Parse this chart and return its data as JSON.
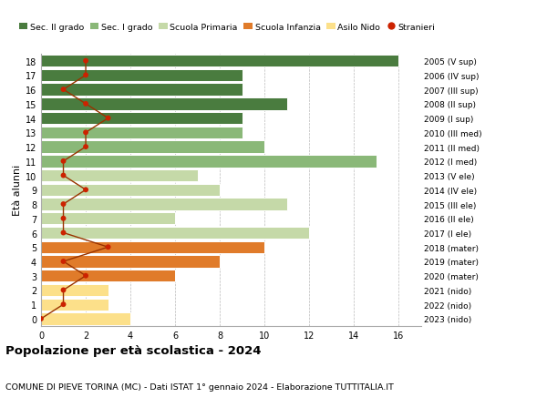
{
  "ages": [
    0,
    1,
    2,
    3,
    4,
    5,
    6,
    7,
    8,
    9,
    10,
    11,
    12,
    13,
    14,
    15,
    16,
    17,
    18
  ],
  "bar_values": [
    4,
    3,
    3,
    6,
    8,
    10,
    12,
    6,
    11,
    8,
    7,
    15,
    10,
    9,
    9,
    11,
    9,
    9,
    16
  ],
  "bar_colors": [
    "#fce08a",
    "#fce08a",
    "#fce08a",
    "#e07b2a",
    "#e07b2a",
    "#e07b2a",
    "#c5d9a8",
    "#c5d9a8",
    "#c5d9a8",
    "#c5d9a8",
    "#c5d9a8",
    "#8ab878",
    "#8ab878",
    "#8ab878",
    "#4a7c3f",
    "#4a7c3f",
    "#4a7c3f",
    "#4a7c3f",
    "#4a7c3f"
  ],
  "stranieri_values": [
    0,
    1,
    1,
    2,
    1,
    3,
    1,
    1,
    1,
    2,
    1,
    1,
    2,
    2,
    3,
    2,
    1,
    2,
    2
  ],
  "right_labels": [
    "2023 (nido)",
    "2022 (nido)",
    "2021 (nido)",
    "2020 (mater)",
    "2019 (mater)",
    "2018 (mater)",
    "2017 (I ele)",
    "2016 (II ele)",
    "2015 (III ele)",
    "2014 (IV ele)",
    "2013 (V ele)",
    "2012 (I med)",
    "2011 (II med)",
    "2010 (III med)",
    "2009 (I sup)",
    "2008 (II sup)",
    "2007 (III sup)",
    "2006 (IV sup)",
    "2005 (V sup)"
  ],
  "title": "Popolazione per età scolastica - 2024",
  "subtitle": "COMUNE DI PIEVE TORINA (MC) - Dati ISTAT 1° gennaio 2024 - Elaborazione TUTTITALIA.IT",
  "ylabel_left": "Età alunni",
  "xlim": [
    0,
    17
  ],
  "xticks": [
    0,
    2,
    4,
    6,
    8,
    10,
    12,
    14,
    16
  ],
  "legend_labels": [
    "Sec. II grado",
    "Sec. I grado",
    "Scuola Primaria",
    "Scuola Infanzia",
    "Asilo Nido",
    "Stranieri"
  ],
  "legend_colors": [
    "#4a7c3f",
    "#8ab878",
    "#c5d9a8",
    "#e07b2a",
    "#fce08a",
    "#cc2200"
  ],
  "stranieri_color": "#cc2200",
  "stranieri_line_color": "#993300",
  "grid_color": "#bbbbbb",
  "bg_color": "#ffffff"
}
